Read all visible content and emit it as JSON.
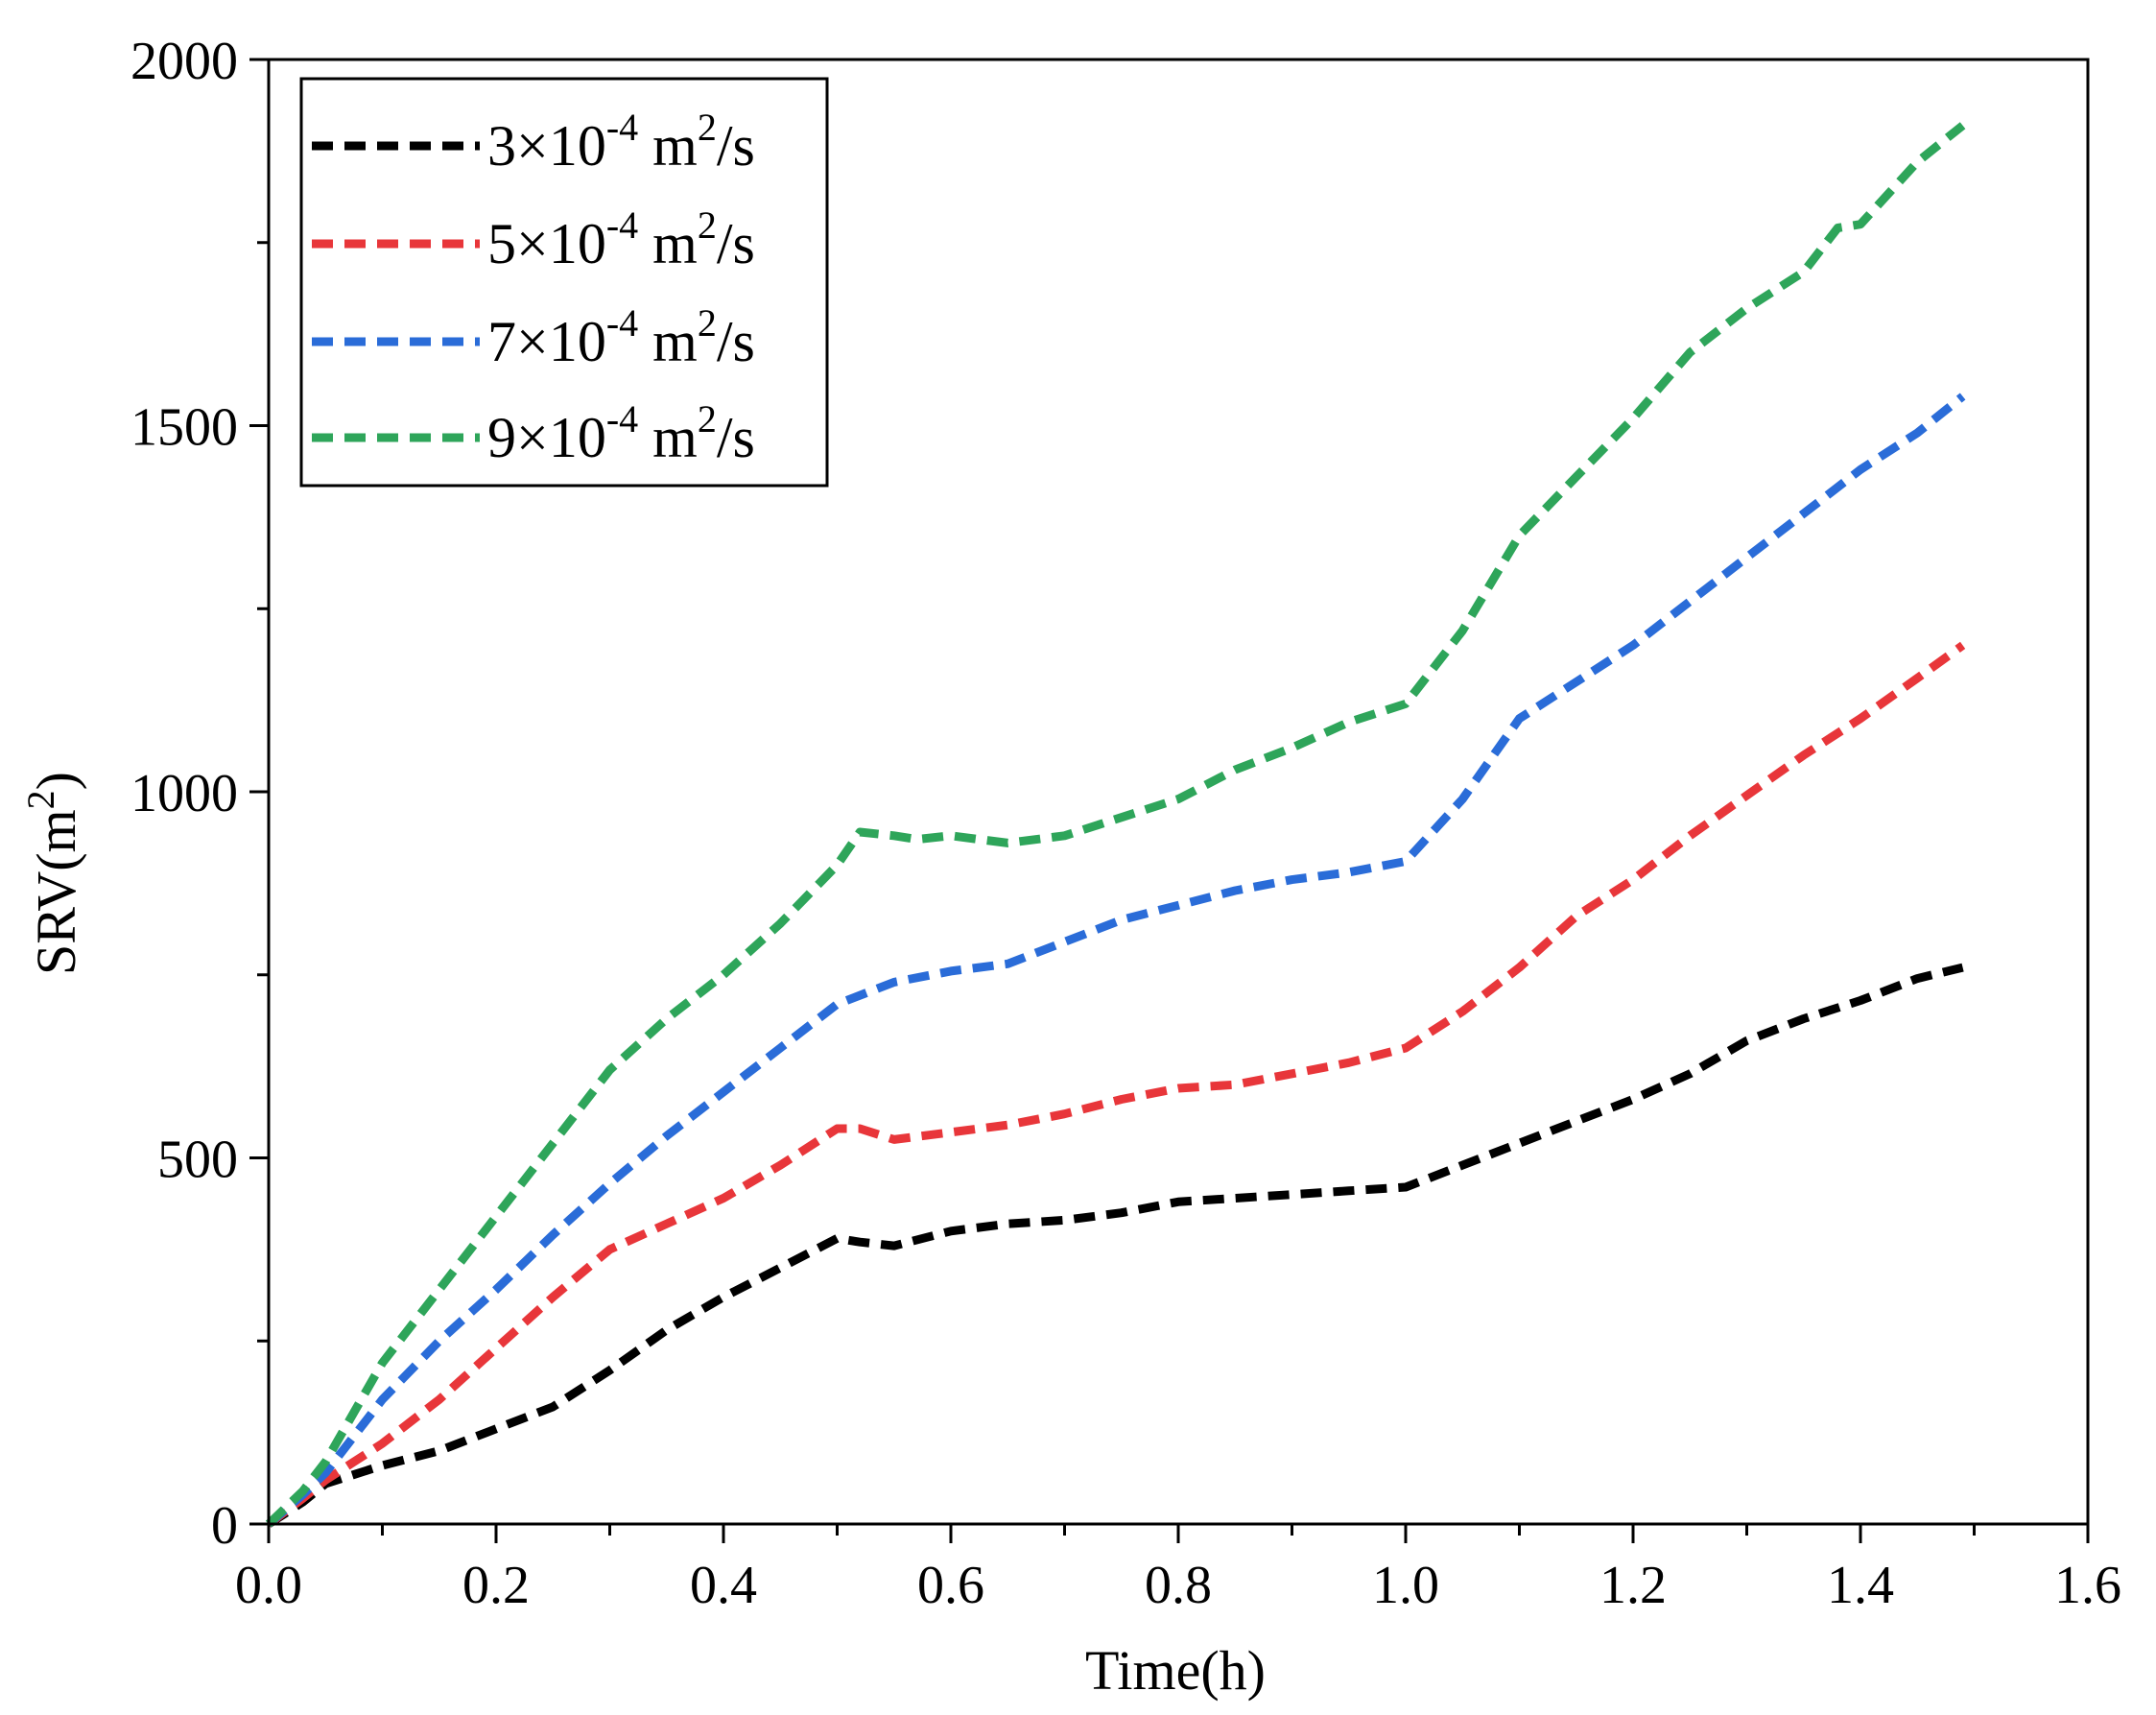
{
  "chart_data": {
    "type": "line",
    "title": "",
    "xlabel": "Time(h)",
    "ylabel_main": "SRV(m",
    "ylabel_sup": "2",
    "ylabel_end": ")",
    "xlim": [
      0.0,
      1.6
    ],
    "ylim": [
      0,
      2000
    ],
    "x_ticks": [
      0.0,
      0.2,
      0.4,
      0.6,
      0.8,
      1.0,
      1.2,
      1.4,
      1.6
    ],
    "x_tick_labels": [
      "0.0",
      "0.2",
      "0.4",
      "0.6",
      "0.8",
      "1.0",
      "1.2",
      "1.4",
      "1.6"
    ],
    "x_minor_ticks": [
      0.1,
      0.3,
      0.5,
      0.7,
      0.9,
      1.1,
      1.3,
      1.5
    ],
    "y_ticks": [
      0,
      500,
      1000,
      1500,
      2000
    ],
    "y_tick_labels": [
      "0",
      "500",
      "1000",
      "1500",
      "2000"
    ],
    "y_minor_ticks": [
      250,
      750,
      1250,
      1750
    ],
    "grid": false,
    "legend_position": "top-left",
    "series": [
      {
        "name": "3×10-4 m2/s",
        "legend_coef": "3×10",
        "legend_exp": "-4",
        "legend_unit": " m",
        "legend_unit_exp": "2",
        "legend_unit_end": "/s",
        "color": "#000000",
        "x": [
          0.0,
          0.03,
          0.05,
          0.1,
          0.15,
          0.2,
          0.25,
          0.3,
          0.35,
          0.4,
          0.45,
          0.5,
          0.52,
          0.55,
          0.6,
          0.65,
          0.7,
          0.75,
          0.8,
          0.85,
          0.9,
          0.95,
          1.0,
          1.05,
          1.1,
          1.15,
          1.2,
          1.25,
          1.3,
          1.35,
          1.4,
          1.45,
          1.49
        ],
        "values": [
          0,
          30,
          55,
          80,
          100,
          130,
          160,
          210,
          265,
          310,
          350,
          390,
          385,
          380,
          400,
          410,
          415,
          425,
          440,
          445,
          450,
          455,
          460,
          490,
          520,
          550,
          580,
          615,
          660,
          690,
          715,
          745,
          760
        ]
      },
      {
        "name": "5×10-4 m2/s",
        "legend_coef": "5×10",
        "legend_exp": "-4",
        "legend_unit": " m",
        "legend_unit_exp": "2",
        "legend_unit_end": "/s",
        "color": "#e8363a",
        "x": [
          0.0,
          0.03,
          0.05,
          0.1,
          0.15,
          0.2,
          0.25,
          0.3,
          0.35,
          0.4,
          0.45,
          0.5,
          0.52,
          0.55,
          0.6,
          0.65,
          0.7,
          0.75,
          0.8,
          0.85,
          0.9,
          0.95,
          1.0,
          1.05,
          1.1,
          1.15,
          1.2,
          1.25,
          1.3,
          1.35,
          1.4,
          1.45,
          1.49
        ],
        "values": [
          0,
          35,
          60,
          110,
          170,
          240,
          310,
          375,
          410,
          445,
          490,
          540,
          540,
          525,
          535,
          545,
          560,
          580,
          595,
          600,
          615,
          630,
          650,
          700,
          760,
          830,
          880,
          940,
          995,
          1050,
          1100,
          1155,
          1200
        ]
      },
      {
        "name": "7×10-4 m2/s",
        "legend_coef": "7×10",
        "legend_exp": "-4",
        "legend_unit": " m",
        "legend_unit_exp": "2",
        "legend_unit_end": "/s",
        "color": "#2a6cd8",
        "x": [
          0.0,
          0.03,
          0.05,
          0.1,
          0.15,
          0.2,
          0.25,
          0.3,
          0.35,
          0.4,
          0.45,
          0.5,
          0.55,
          0.6,
          0.65,
          0.7,
          0.75,
          0.8,
          0.85,
          0.9,
          0.95,
          1.0,
          1.05,
          1.1,
          1.15,
          1.2,
          1.25,
          1.3,
          1.35,
          1.4,
          1.45,
          1.49
        ],
        "values": [
          0,
          40,
          70,
          170,
          250,
          320,
          395,
          465,
          530,
          590,
          650,
          710,
          740,
          755,
          765,
          795,
          825,
          845,
          865,
          880,
          890,
          905,
          990,
          1100,
          1150,
          1200,
          1260,
          1320,
          1380,
          1440,
          1490,
          1540
        ]
      },
      {
        "name": "9×10-4 m2/s",
        "legend_coef": "9×10",
        "legend_exp": "-4",
        "legend_unit": " m",
        "legend_unit_exp": "2",
        "legend_unit_end": "/s",
        "color": "#2ea55a",
        "x": [
          0.0,
          0.03,
          0.05,
          0.1,
          0.15,
          0.2,
          0.25,
          0.3,
          0.35,
          0.4,
          0.45,
          0.5,
          0.52,
          0.55,
          0.57,
          0.6,
          0.65,
          0.7,
          0.75,
          0.8,
          0.85,
          0.9,
          0.95,
          1.0,
          1.05,
          1.1,
          1.15,
          1.2,
          1.25,
          1.3,
          1.35,
          1.38,
          1.4,
          1.45,
          1.49
        ],
        "values": [
          0,
          45,
          85,
          220,
          320,
          420,
          520,
          620,
          690,
          750,
          820,
          900,
          945,
          940,
          935,
          940,
          930,
          940,
          965,
          990,
          1030,
          1060,
          1095,
          1120,
          1220,
          1350,
          1430,
          1510,
          1600,
          1660,
          1710,
          1770,
          1775,
          1860,
          1910
        ]
      }
    ]
  }
}
